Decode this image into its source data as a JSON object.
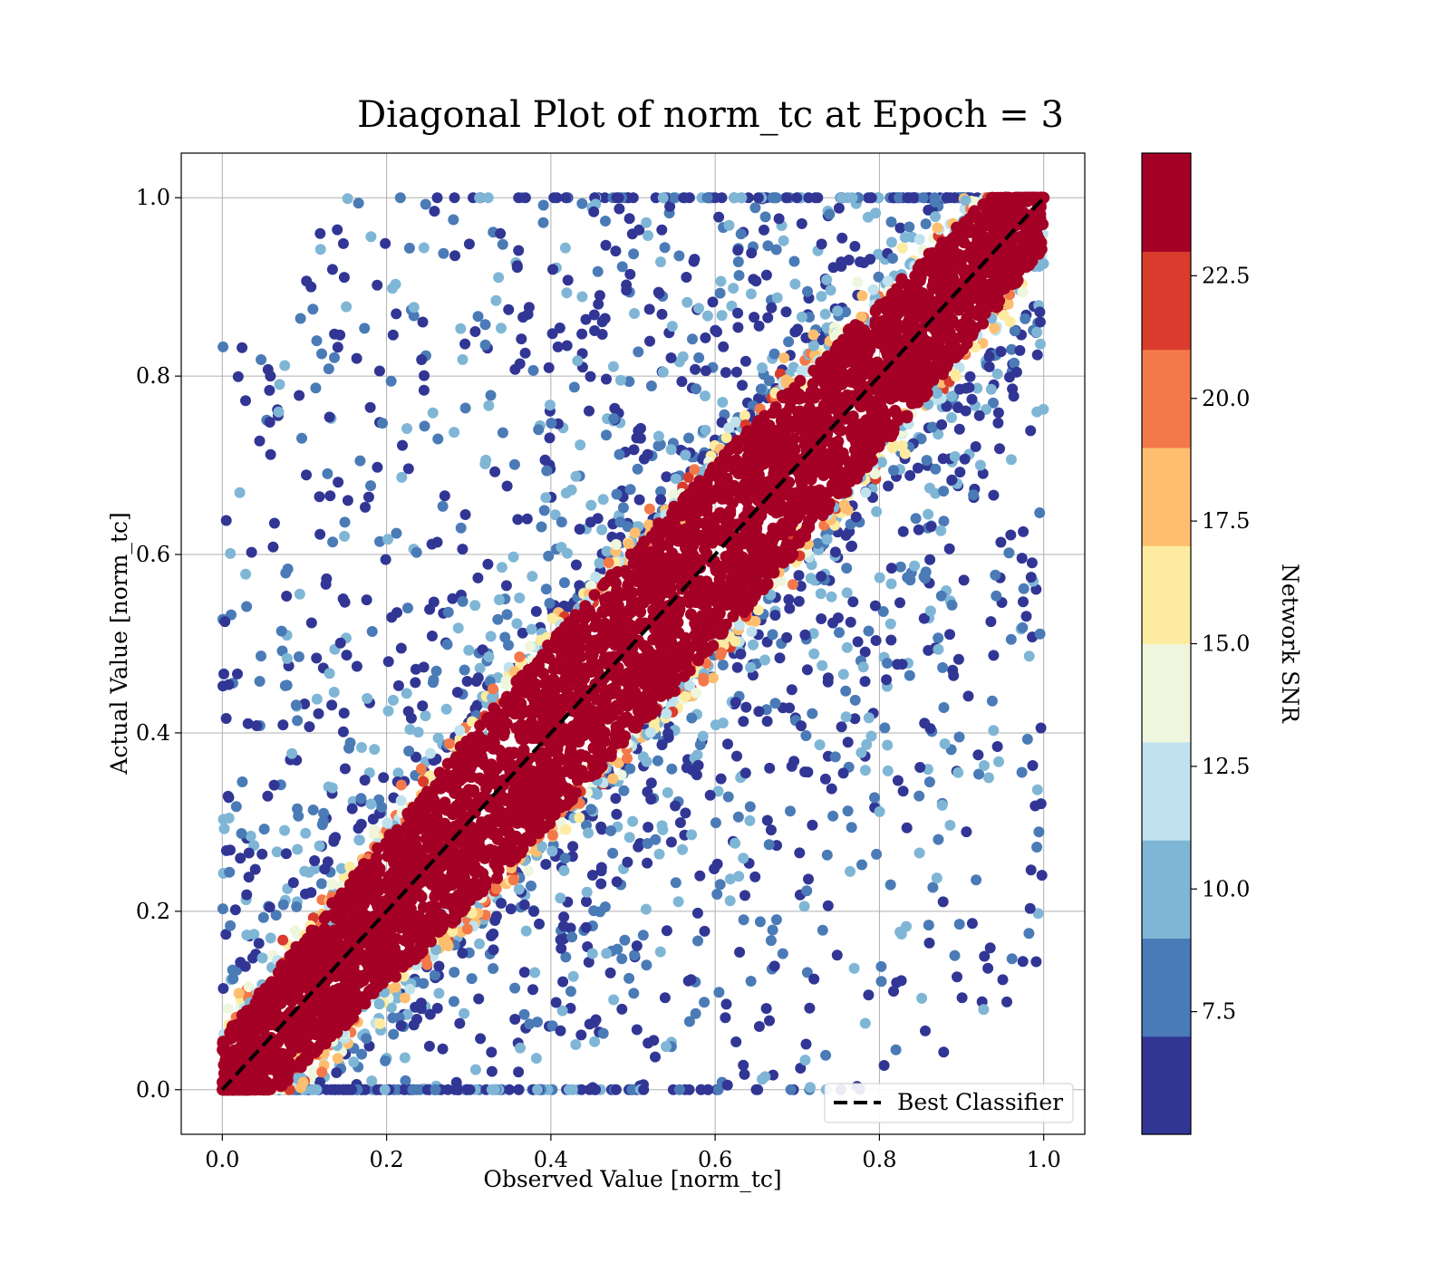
{
  "chart_data": {
    "type": "scatter",
    "title": "Diagonal Plot of norm_tc at Epoch = 3",
    "xlabel": "Observed Value [norm_tc]",
    "ylabel": "Actual Value [norm_tc]",
    "xlim": [
      -0.05,
      1.05
    ],
    "ylim": [
      -0.05,
      1.05
    ],
    "xticks": [
      0.0,
      0.2,
      0.4,
      0.6,
      0.8,
      1.0
    ],
    "xtick_labels": [
      "0.0",
      "0.2",
      "0.4",
      "0.6",
      "0.8",
      "1.0"
    ],
    "yticks": [
      0.0,
      0.2,
      0.4,
      0.6,
      0.8,
      1.0
    ],
    "ytick_labels": [
      "0.0",
      "0.2",
      "0.4",
      "0.6",
      "0.8",
      "1.0"
    ],
    "grid": true,
    "reference_line": {
      "x": [
        0.0,
        1.0
      ],
      "y": [
        0.0,
        1.0
      ],
      "style": "dashed",
      "color": "#000000"
    },
    "legend": {
      "placement": "lower-right",
      "entries": [
        {
          "label": "Best Classifier",
          "style": "dashed",
          "color": "#000000"
        }
      ]
    },
    "colorbar": {
      "label": "Network SNR",
      "range": [
        5.0,
        25.0
      ],
      "ticks": [
        7.5,
        10.0,
        12.5,
        15.0,
        17.5,
        20.0,
        22.5
      ],
      "tick_labels": [
        "7.5",
        "10.0",
        "12.5",
        "15.0",
        "17.5",
        "20.0",
        "22.5"
      ],
      "bands": [
        {
          "from": 5.0,
          "to": 7.0,
          "color": "#313695"
        },
        {
          "from": 7.0,
          "to": 9.0,
          "color": "#4a7bb7"
        },
        {
          "from": 9.0,
          "to": 11.0,
          "color": "#7fb6d6"
        },
        {
          "from": 11.0,
          "to": 13.0,
          "color": "#bfe2ee"
        },
        {
          "from": 13.0,
          "to": 15.0,
          "color": "#eef7dd"
        },
        {
          "from": 15.0,
          "to": 17.0,
          "color": "#fdeba0"
        },
        {
          "from": 17.0,
          "to": 19.0,
          "color": "#fdbf6f"
        },
        {
          "from": 19.0,
          "to": 21.0,
          "color": "#f4794a"
        },
        {
          "from": 21.0,
          "to": 23.0,
          "color": "#d93c2c"
        },
        {
          "from": 23.0,
          "to": 25.0,
          "color": "#a50026"
        }
      ]
    },
    "point_distribution": {
      "description": "High-SNR points (dark red) form a dense band along the diagonal, widest near the middle; low-SNR points (blue) are scattered widely above and below the band.",
      "dense_band_half_width": 0.11,
      "band_snr": 24,
      "low_snr_range": [
        5,
        11
      ]
    }
  }
}
